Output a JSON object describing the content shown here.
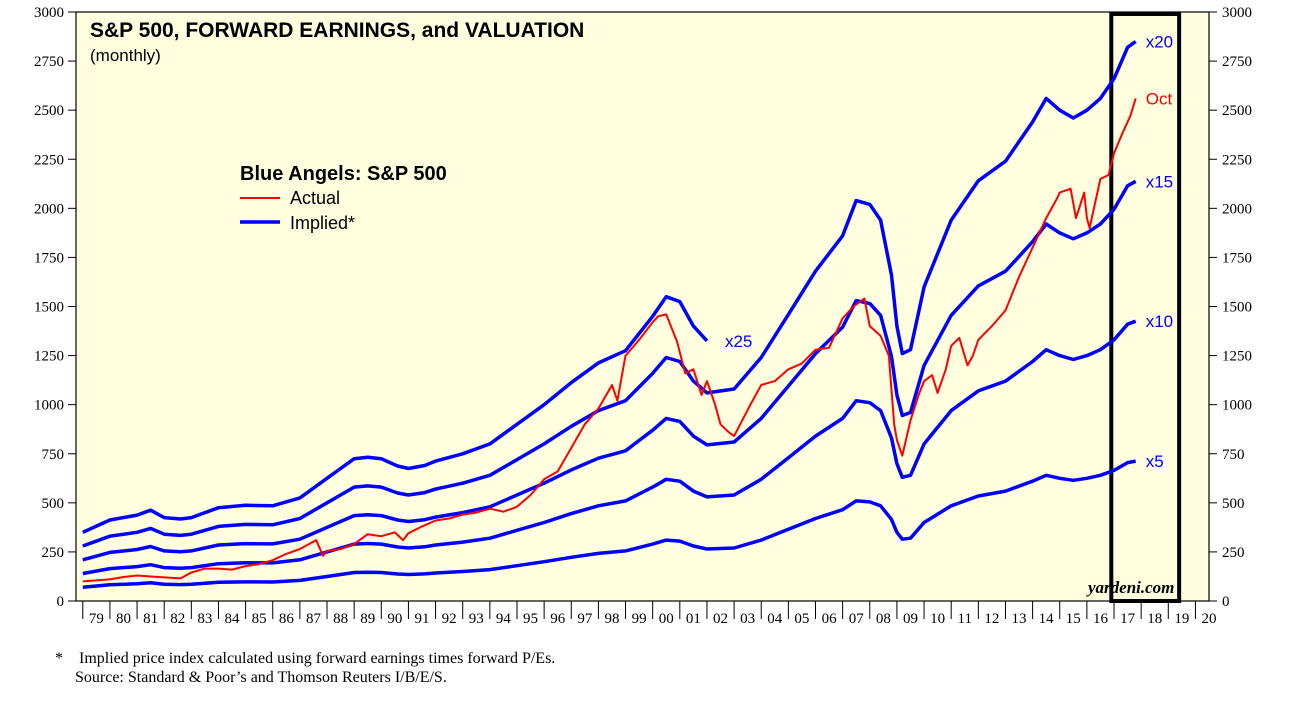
{
  "chart_data": {
    "type": "line",
    "title": "S&P 500, FORWARD EARNINGS, and VALUATION",
    "subtitle": "(monthly)",
    "legend": {
      "title": "Blue Angels: S&P 500",
      "entries": [
        {
          "label": "Actual",
          "color": "#ff0000"
        },
        {
          "label": "Implied*",
          "color": "#0000ff"
        }
      ]
    },
    "x_range": [
      1978.75,
      2020.5
    ],
    "ylim": [
      0,
      3000
    ],
    "y_ticks": [
      0,
      250,
      500,
      750,
      1000,
      1250,
      1500,
      1750,
      2000,
      2250,
      2500,
      2750,
      3000
    ],
    "x_tick_labels": [
      "79",
      "80",
      "81",
      "82",
      "83",
      "84",
      "85",
      "86",
      "87",
      "88",
      "89",
      "90",
      "91",
      "92",
      "93",
      "94",
      "95",
      "96",
      "97",
      "98",
      "99",
      "00",
      "01",
      "02",
      "03",
      "04",
      "05",
      "06",
      "07",
      "08",
      "09",
      "10",
      "11",
      "12",
      "13",
      "14",
      "15",
      "16",
      "17",
      "18",
      "19",
      "20"
    ],
    "x_tick_start": 1979,
    "forward_earnings": {
      "x": [
        1979.0,
        1980.0,
        1981.0,
        1981.5,
        1982.0,
        1982.6,
        1983.0,
        1984.0,
        1985.0,
        1986.0,
        1987.0,
        1988.0,
        1988.5,
        1989.0,
        1989.5,
        1990.0,
        1990.6,
        1991.0,
        1991.6,
        1992.0,
        1993.0,
        1994.0,
        1995.0,
        1996.0,
        1997.0,
        1998.0,
        1999.0,
        2000.0,
        2000.5,
        2001.0,
        2001.5,
        2002.0,
        2003.0,
        2004.0,
        2005.0,
        2006.0,
        2007.0,
        2007.5,
        2008.0,
        2008.4,
        2008.8,
        2009.0,
        2009.2,
        2009.5,
        2010.0,
        2011.0,
        2012.0,
        2013.0,
        2014.0,
        2014.5,
        2015.0,
        2015.5,
        2016.0,
        2016.5,
        2017.0,
        2017.5,
        2017.8
      ],
      "values": [
        14.0,
        16.5,
        17.5,
        18.5,
        17.0,
        16.7,
        17.0,
        19.0,
        19.5,
        19.4,
        21.0,
        25.0,
        27.0,
        29.0,
        29.3,
        29.0,
        27.5,
        27.0,
        27.6,
        28.5,
        30.0,
        32.0,
        36.0,
        40.0,
        44.5,
        48.5,
        51.0,
        58.0,
        62.0,
        61.0,
        56.0,
        53.0,
        54.0,
        62.0,
        73.0,
        84.0,
        93.0,
        102.0,
        101.0,
        97.0,
        83.0,
        70.0,
        63.0,
        64.0,
        80.0,
        97.0,
        107.0,
        112.0,
        122.0,
        128.0,
        125.0,
        123.0,
        125.0,
        128.0,
        133.0,
        141.0,
        142.5
      ]
    },
    "series": [
      {
        "name": "x5",
        "multiple": 5,
        "color": "#0000ff"
      },
      {
        "name": "x10",
        "multiple": 10,
        "color": "#0000ff"
      },
      {
        "name": "x15",
        "multiple": 15,
        "color": "#0000ff"
      },
      {
        "name": "x20",
        "multiple": 20,
        "color": "#0000ff"
      },
      {
        "name": "x25",
        "multiple": 25,
        "color": "#0000ff",
        "x_max": 2002.0
      },
      {
        "name": "Actual",
        "color": "#ff0000",
        "end_label": "Oct",
        "x": [
          1979.0,
          1980.0,
          1980.5,
          1981.0,
          1981.5,
          1982.0,
          1982.6,
          1983.0,
          1983.5,
          1984.0,
          1984.5,
          1985.0,
          1985.5,
          1986.0,
          1986.5,
          1987.0,
          1987.6,
          1987.85,
          1988.0,
          1988.5,
          1989.0,
          1989.5,
          1990.0,
          1990.5,
          1990.8,
          1991.0,
          1991.5,
          1992.0,
          1992.5,
          1993.0,
          1993.5,
          1994.0,
          1994.5,
          1995.0,
          1995.5,
          1996.0,
          1996.5,
          1997.0,
          1997.5,
          1998.0,
          1998.5,
          1998.7,
          1999.0,
          1999.5,
          2000.0,
          2000.2,
          2000.5,
          2000.9,
          2001.2,
          2001.5,
          2001.8,
          2002.0,
          2002.3,
          2002.5,
          2002.8,
          2003.0,
          2003.3,
          2003.6,
          2004.0,
          2004.5,
          2005.0,
          2005.5,
          2006.0,
          2006.5,
          2007.0,
          2007.4,
          2007.8,
          2008.0,
          2008.4,
          2008.7,
          2008.9,
          2009.0,
          2009.2,
          2009.5,
          2009.8,
          2010.0,
          2010.3,
          2010.5,
          2010.8,
          2011.0,
          2011.3,
          2011.6,
          2011.8,
          2012.0,
          2012.5,
          2013.0,
          2013.5,
          2014.0,
          2014.5,
          2014.9,
          2015.0,
          2015.4,
          2015.6,
          2015.9,
          2016.0,
          2016.1,
          2016.5,
          2016.8,
          2017.0,
          2017.3,
          2017.6,
          2017.8
        ],
        "values": [
          100,
          110,
          122,
          130,
          125,
          120,
          115,
          145,
          165,
          165,
          160,
          178,
          188,
          208,
          240,
          265,
          310,
          230,
          255,
          265,
          290,
          340,
          330,
          350,
          310,
          345,
          380,
          410,
          420,
          440,
          450,
          470,
          455,
          480,
          540,
          620,
          660,
          780,
          900,
          980,
          1100,
          1020,
          1250,
          1330,
          1420,
          1450,
          1460,
          1320,
          1160,
          1180,
          1050,
          1120,
          1000,
          900,
          860,
          840,
          920,
          1000,
          1100,
          1120,
          1180,
          1210,
          1280,
          1290,
          1440,
          1500,
          1540,
          1400,
          1350,
          1250,
          900,
          820,
          740,
          920,
          1050,
          1120,
          1150,
          1060,
          1180,
          1300,
          1340,
          1200,
          1250,
          1330,
          1400,
          1480,
          1650,
          1800,
          1950,
          2050,
          2080,
          2100,
          1950,
          2080,
          1950,
          1900,
          2150,
          2170,
          2280,
          2380,
          2470,
          2560
        ]
      }
    ],
    "annotations": [
      "yardeni.com"
    ],
    "highlight_box": {
      "x_start": 2016.9,
      "x_end": 2019.4,
      "y_start": 0,
      "y_end": 2990
    }
  },
  "footnotes": {
    "note_marker": "*",
    "note": "Implied price index calculated using forward earnings times forward P/Es.",
    "source": "Source: Standard & Poor’s and Thomson Reuters I/B/E/S."
  }
}
